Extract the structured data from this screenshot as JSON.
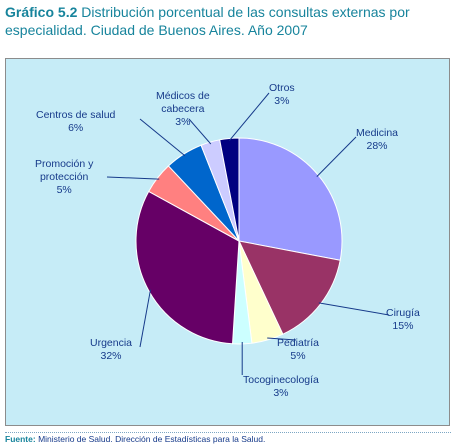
{
  "title": {
    "number": "Gráfico 5.2",
    "text": "Distribución porcentual de las consultas externas por especialidad. Ciudad de Buenos Aires. Año 2007"
  },
  "chart_data": {
    "type": "pie",
    "title": "Distribución porcentual de las consultas externas por especialidad. Ciudad de Buenos Aires. Año 2007",
    "slices": [
      {
        "label": "Medicina",
        "value": 28,
        "pct_label": "28%",
        "color": "#9999ff"
      },
      {
        "label": "Cirugía",
        "value": 15,
        "pct_label": "15%",
        "color": "#993366"
      },
      {
        "label": "Pediatría",
        "value": 5,
        "pct_label": "5%",
        "color": "#ffffcc"
      },
      {
        "label": "Tocoginecología",
        "value": 3,
        "pct_label": "3%",
        "color": "#ccffff"
      },
      {
        "label": "Urgencia",
        "value": 32,
        "pct_label": "32%",
        "color": "#660066"
      },
      {
        "label": "Promoción y protección",
        "value": 5,
        "pct_label": "5%",
        "color": "#ff8080"
      },
      {
        "label": "Centros de salud",
        "value": 6,
        "pct_label": "6%",
        "color": "#0066cc"
      },
      {
        "label": "Médicos de cabecera",
        "value": 3,
        "pct_label": "3%",
        "color": "#ccccff"
      },
      {
        "label": "Otros",
        "value": 3,
        "pct_label": "3%",
        "color": "#000080"
      }
    ],
    "labels": {
      "medicina": "Medicina",
      "cirugia": "Cirugía",
      "pediatria": "Pediatría",
      "tocoginecologia": "Tocoginecología",
      "urgencia": "Urgencia",
      "promocion_line1": "Promoción y",
      "promocion_line2": "protección",
      "centros": "Centros de salud",
      "medicos_line1": "Médicos de",
      "medicos_line2": "cabecera",
      "otros": "Otros"
    },
    "label_color": "#163a8a",
    "background_color": "#c6ecf7"
  },
  "footer": {
    "label": "Fuente:",
    "text": "Ministerio de Salud. Dirección de Estadísticas para la Salud."
  }
}
